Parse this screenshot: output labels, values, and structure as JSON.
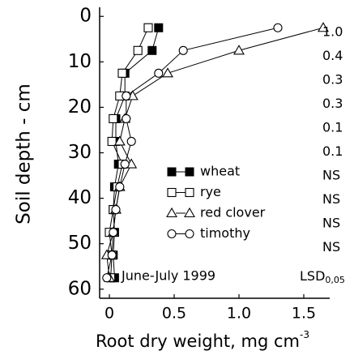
{
  "chart_data": {
    "type": "line",
    "xlabel": "Root dry weight, mg cm",
    "xlabel_sup": "-3",
    "ylabel": "Soil depth - cm",
    "annotation": "June-July 1999",
    "lsd_title": "LSD",
    "lsd_subscript": "0,05",
    "lsd_labels": [
      "1.0",
      "0.4",
      "0.3",
      "0.3",
      "0.1",
      "0.1",
      "NS",
      "NS",
      "NS",
      "NS"
    ],
    "y": [
      2.5,
      7.5,
      12.5,
      17.5,
      22.5,
      27.5,
      32.5,
      37.5,
      42.5,
      47.5,
      52.5,
      57.5
    ],
    "series": [
      {
        "name": "wheat",
        "marker": "square-filled",
        "color": "#000000",
        "values": [
          0.38,
          0.33,
          0.12,
          0.12,
          0.05,
          0.05,
          0.07,
          0.04,
          0.03,
          0.04,
          0.03,
          0.04
        ]
      },
      {
        "name": "rye",
        "marker": "square-open",
        "color": "#000000",
        "values": [
          0.3,
          0.22,
          0.1,
          0.08,
          0.03,
          0.02,
          0.1,
          0.06,
          0.03,
          0.0,
          0.02,
          0.01
        ]
      },
      {
        "name": "red clover",
        "marker": "triangle-open",
        "color": "#000000",
        "values": [
          1.65,
          1.0,
          0.45,
          0.18,
          0.12,
          0.08,
          0.17,
          0.08,
          0.05,
          0.03,
          -0.02,
          0.0
        ]
      },
      {
        "name": "timothy",
        "marker": "circle-open",
        "color": "#000000",
        "values": [
          1.3,
          0.57,
          0.38,
          0.13,
          0.13,
          0.17,
          0.12,
          0.08,
          0.05,
          0.03,
          0.02,
          -0.02
        ]
      }
    ],
    "xlim": [
      -0.075,
      1.7
    ],
    "xticks": [
      0,
      0.5,
      {
        "value": 1,
        "label": "1.0"
      },
      1.5
    ],
    "ylim": [
      -2,
      62
    ],
    "yticks": [
      0,
      10,
      20,
      30,
      40,
      50,
      60
    ],
    "y_inverted": true
  }
}
